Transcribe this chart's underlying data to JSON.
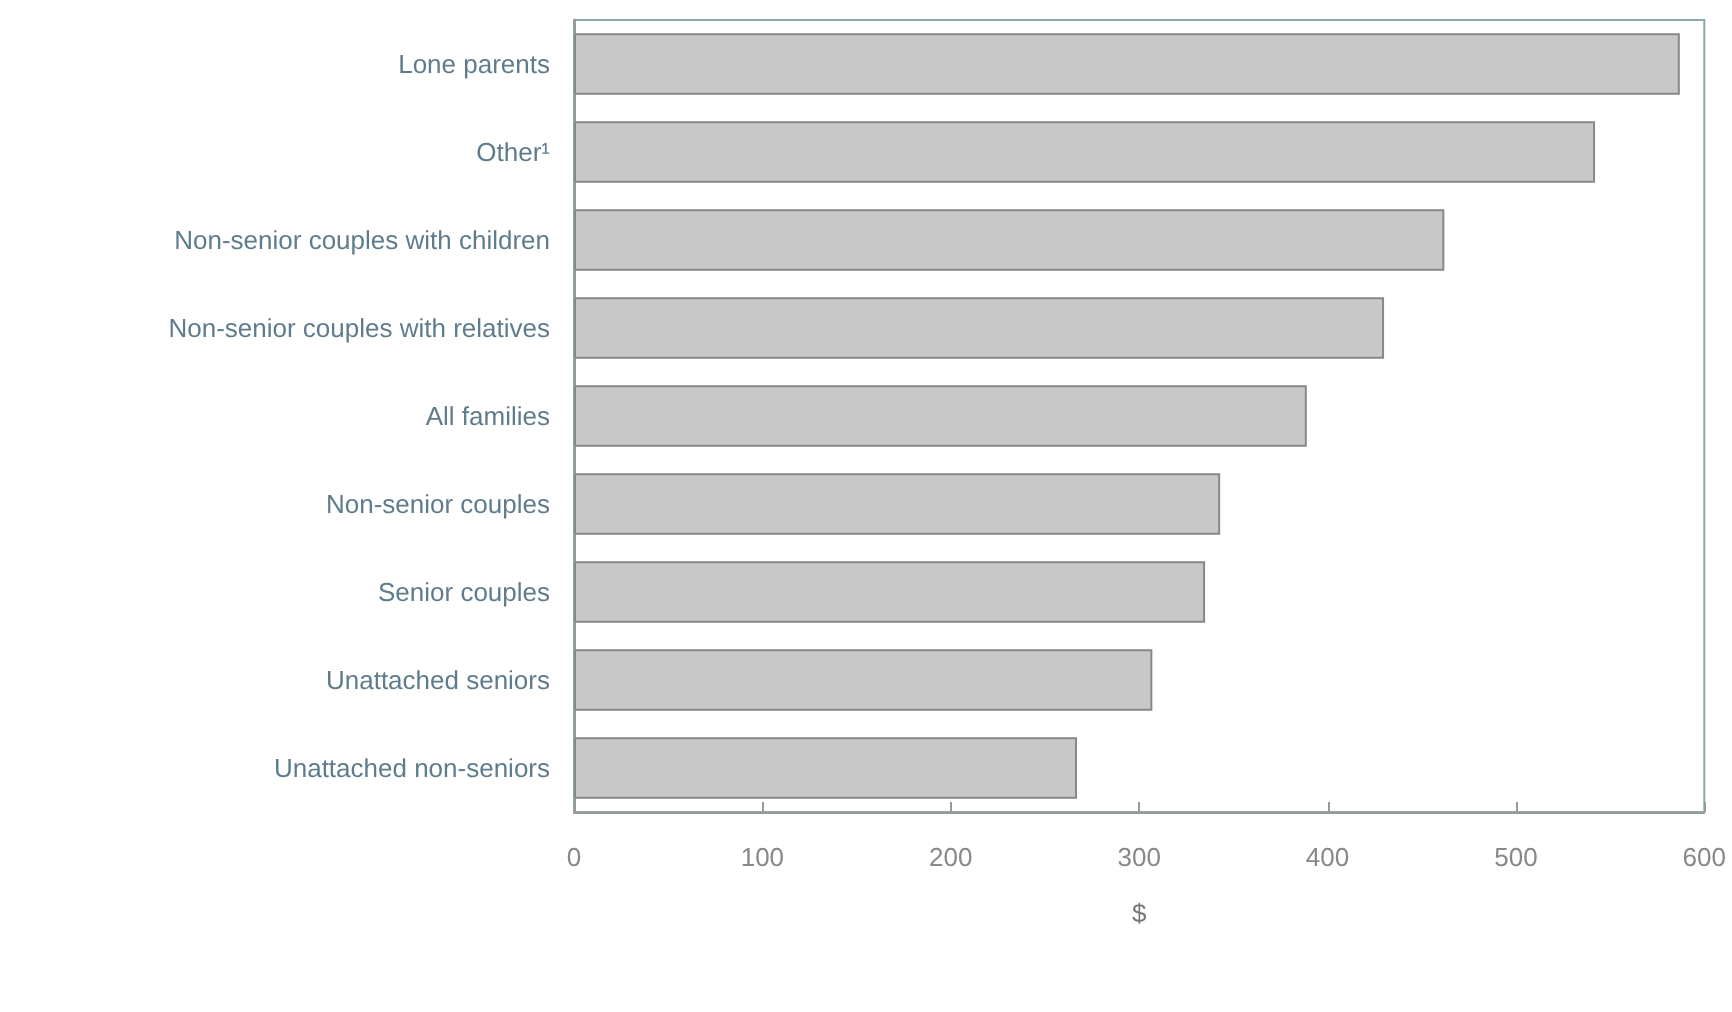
{
  "chart_data": {
    "type": "bar",
    "orientation": "horizontal",
    "xlabel": "$",
    "categories": [
      "Lone parents",
      "Other¹",
      "Non-senior couples with children",
      "Non-senior couples with relatives",
      "All families",
      "Non-senior couples",
      "Senior couples",
      "Unattached seniors",
      "Unattached non-seniors"
    ],
    "values": [
      587,
      542,
      462,
      430,
      389,
      343,
      335,
      307,
      267
    ],
    "color": "#c8c8c8",
    "xlim": [
      0,
      600
    ],
    "xticks": [
      0,
      100,
      200,
      300,
      400,
      500,
      600
    ],
    "grid": false
  }
}
